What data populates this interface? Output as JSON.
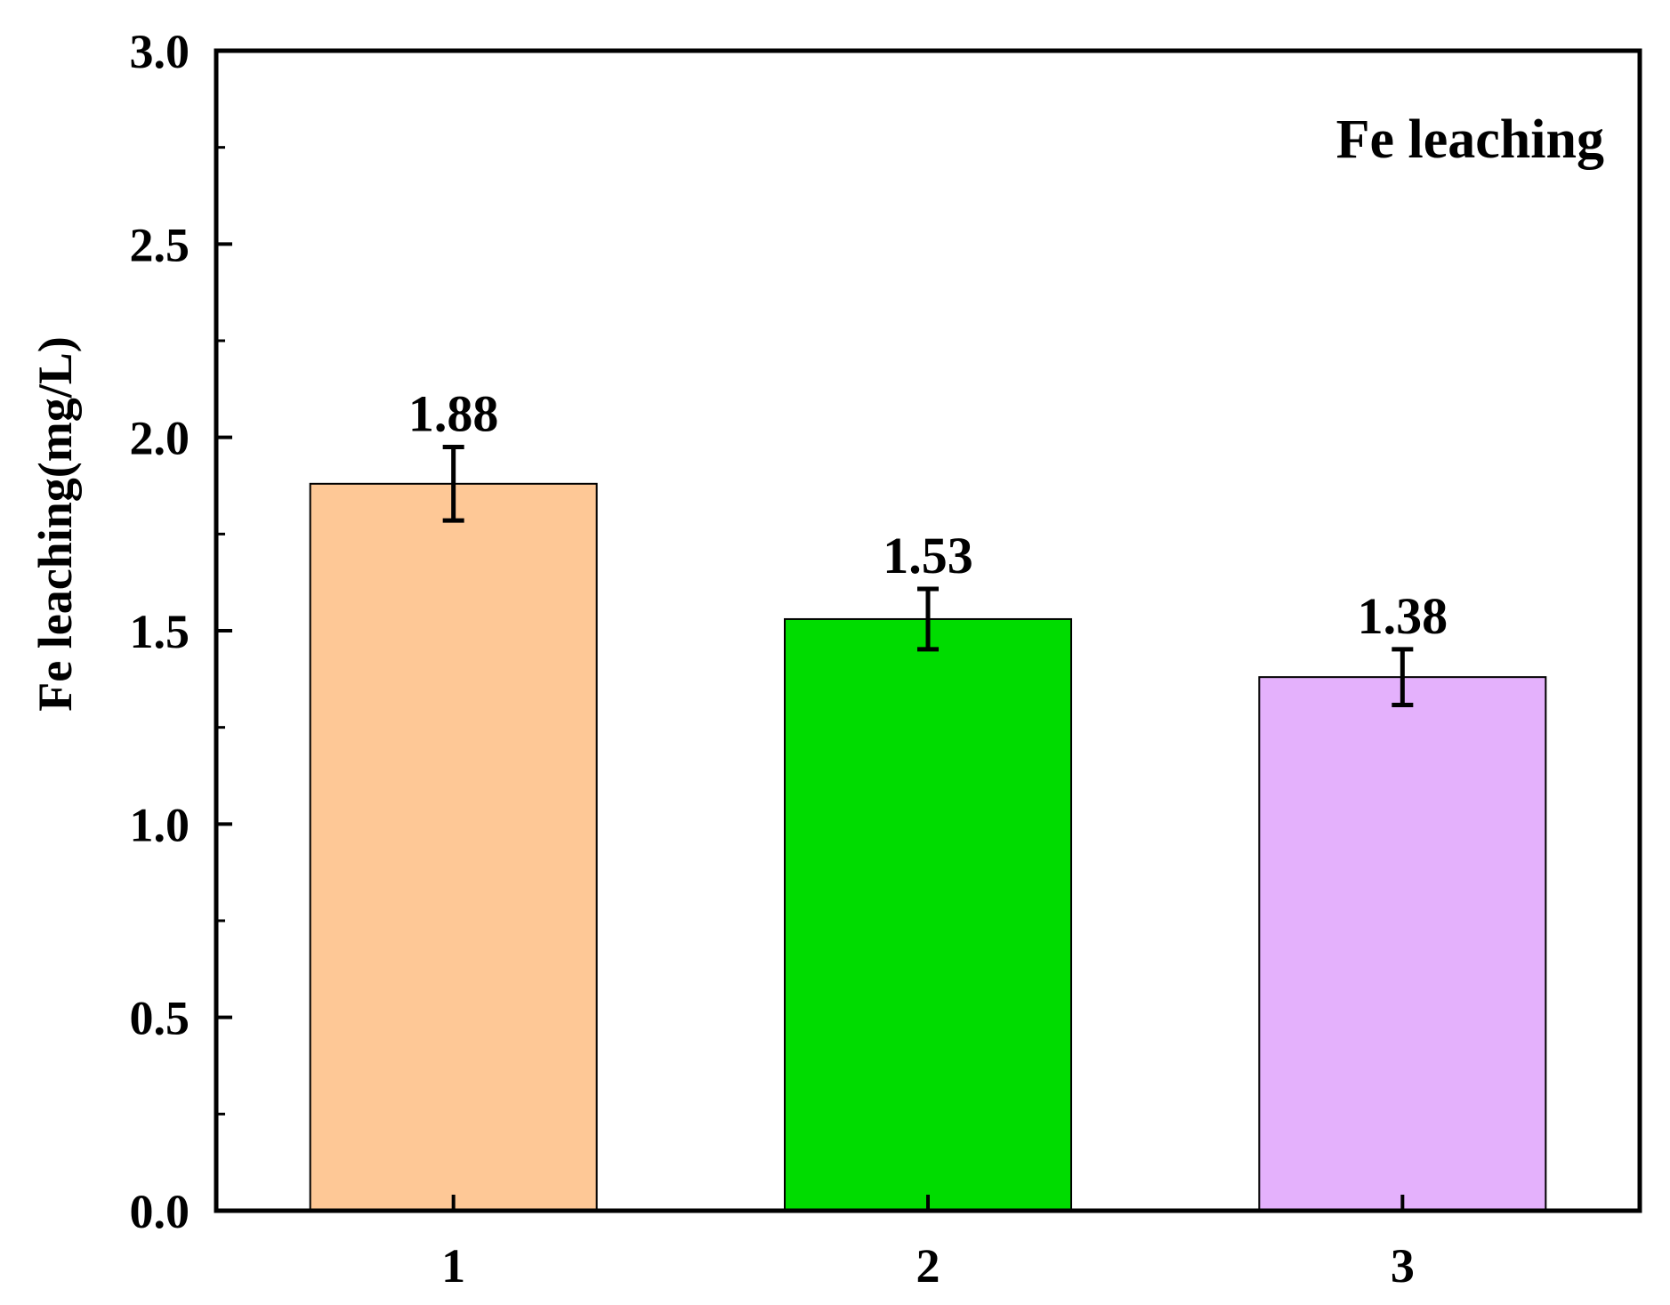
{
  "chart_data": {
    "type": "bar",
    "categories": [
      "1",
      "2",
      "3"
    ],
    "values": [
      1.88,
      1.53,
      1.38
    ],
    "errors": [
      0.095,
      0.078,
      0.072
    ],
    "value_labels": [
      "1.88",
      "1.53",
      "1.38"
    ],
    "colors": [
      "#FEC896",
      "#00DC00",
      "#E4B1FC"
    ],
    "bar_edge_color": "#000000",
    "error_bar_color": "#000000",
    "title": "",
    "annotation": "Fe leaching",
    "annotation_position": "top-right",
    "xlabel": "",
    "ylabel": "Fe leaching(mg/L)",
    "ylim": [
      0,
      3.0
    ],
    "yticks": [
      0.0,
      0.5,
      1.0,
      1.5,
      2.0,
      2.5,
      3.0
    ],
    "ytick_labels": [
      "0.0",
      "0.5",
      "1.0",
      "1.5",
      "2.0",
      "2.5",
      "3.0"
    ],
    "grid": false,
    "legend": false
  }
}
